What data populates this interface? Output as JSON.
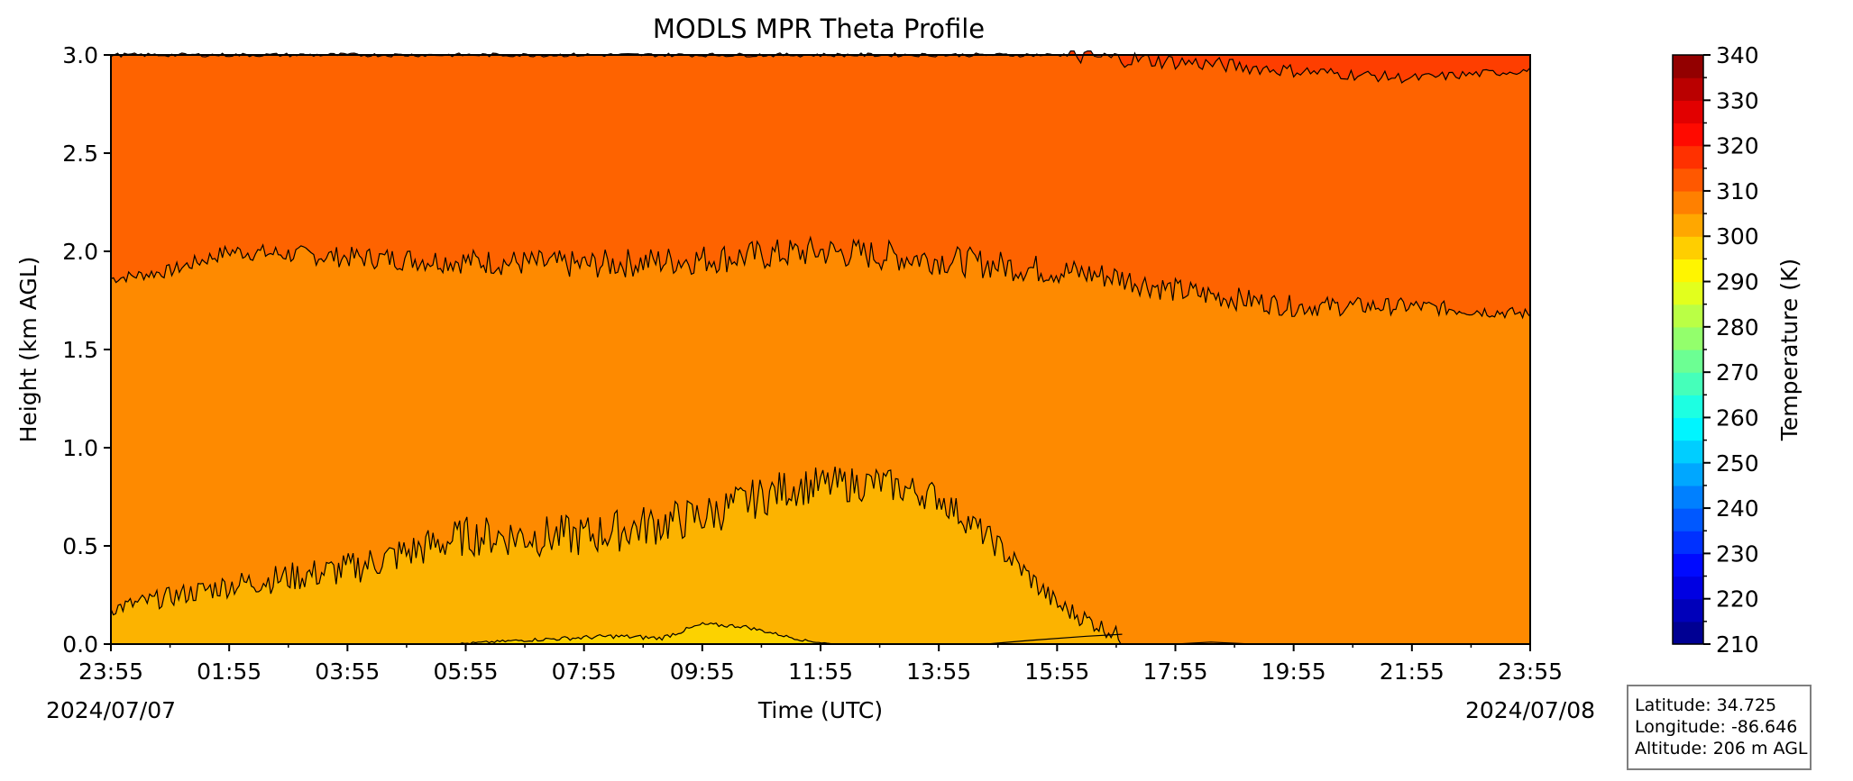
{
  "chart_data": {
    "type": "heatmap",
    "title": "MODLS MPR Theta Profile",
    "xlabel": "Time (UTC)",
    "ylabel": "Height (km AGL)",
    "x_ticks": [
      "23:55",
      "01:55",
      "03:55",
      "05:55",
      "07:55",
      "09:55",
      "11:55",
      "13:55",
      "15:55",
      "17:55",
      "19:55",
      "21:55",
      "23:55"
    ],
    "x_start_date": "2024/07/07",
    "x_end_date": "2024/07/08",
    "y_ticks": [
      "0.0",
      "0.5",
      "1.0",
      "1.5",
      "2.0",
      "2.5",
      "3.0"
    ],
    "ylim": [
      0,
      3.0
    ],
    "colorbar": {
      "label": "Temperature (K)",
      "range": [
        210,
        340
      ],
      "step": 5,
      "ticks": [
        "210",
        "220",
        "230",
        "240",
        "250",
        "260",
        "270",
        "280",
        "290",
        "300",
        "310",
        "320",
        "330",
        "340"
      ],
      "colormap": "jet"
    },
    "contour_levels_K": [
      300,
      305,
      310,
      315
    ],
    "contours": [
      {
        "level": 315,
        "base_height_km": [
          [
            0,
            3.01
          ],
          [
            16,
            3.0
          ],
          [
            18.3,
            2.96
          ],
          [
            20,
            2.92
          ],
          [
            22,
            2.88
          ],
          [
            23.9,
            2.92
          ],
          [
            24,
            2.92
          ]
        ]
      },
      {
        "level": 310,
        "base_height_km": [
          [
            0,
            1.86
          ],
          [
            1,
            1.9
          ],
          [
            2,
            2.0
          ],
          [
            4,
            1.97
          ],
          [
            6,
            1.95
          ],
          [
            8,
            1.93
          ],
          [
            10,
            1.96
          ],
          [
            12,
            2.0
          ],
          [
            14,
            1.96
          ],
          [
            16,
            1.9
          ],
          [
            17,
            1.87
          ],
          [
            18,
            1.8
          ],
          [
            20,
            1.72
          ],
          [
            22,
            1.72
          ],
          [
            24,
            1.68
          ]
        ]
      },
      {
        "level": 305,
        "base_height_km": [
          [
            0,
            0.18
          ],
          [
            2,
            0.3
          ],
          [
            4,
            0.38
          ],
          [
            6,
            0.55
          ],
          [
            8,
            0.55
          ],
          [
            10,
            0.65
          ],
          [
            11.5,
            0.8
          ],
          [
            13,
            0.82
          ],
          [
            14,
            0.75
          ],
          [
            15,
            0.5
          ],
          [
            16,
            0.2
          ],
          [
            17,
            0.05
          ],
          [
            17.2,
            0.0
          ]
        ]
      },
      {
        "level": 300,
        "base_height_km": [
          [
            5.8,
            0.0
          ],
          [
            7,
            0.02
          ],
          [
            8.5,
            0.04
          ],
          [
            9.3,
            0.03
          ],
          [
            10,
            0.1
          ],
          [
            10.7,
            0.09
          ],
          [
            11.7,
            0.02
          ],
          [
            12.2,
            0.0
          ]
        ]
      }
    ],
    "regions_K": [
      {
        "level": 297.5,
        "color": "#fcd200"
      },
      {
        "level": 302.5,
        "color": "#fcb300"
      },
      {
        "level": 307.5,
        "color": "#fe8a00"
      },
      {
        "level": 312.5,
        "color": "#fe6300"
      },
      {
        "level": 317.5,
        "color": "#fe3e00"
      }
    ]
  },
  "info": {
    "latitude": "Latitude: 34.725",
    "longitude": "Longitude: -86.646",
    "altitude": "Altitude: 206 m AGL"
  }
}
